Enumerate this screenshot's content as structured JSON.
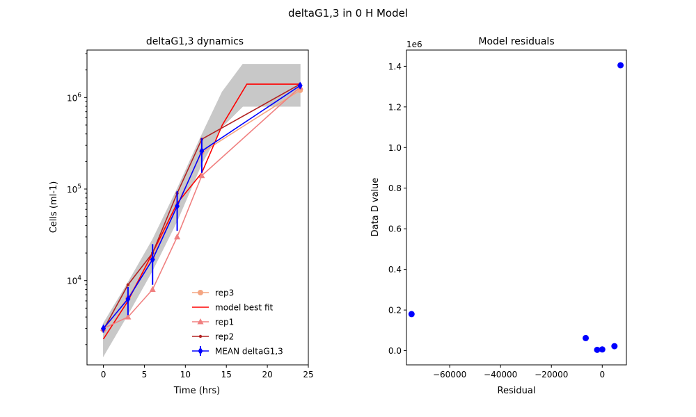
{
  "figure": {
    "suptitle": "deltaG1,3 in 0 H Model"
  },
  "chart_data": [
    {
      "type": "line",
      "title": "deltaG1,3 dynamics",
      "xlabel": "Time (hrs)",
      "ylabel": "Cells (ml-1)",
      "yscale": "log",
      "xlim": [
        -2,
        25
      ],
      "ylim": [
        1200,
        3300000
      ],
      "xticks": [
        0,
        5,
        10,
        15,
        20,
        25
      ],
      "xtick_labels": [
        "0",
        "5",
        "10",
        "15",
        "20",
        "25"
      ],
      "yticks": [
        10000,
        100000,
        1000000
      ],
      "ytick_labels": [
        "10^4",
        "10^5",
        "10^6"
      ],
      "grid": false,
      "legend_position": "lower right",
      "envelope": {
        "color": "#c8c8c8",
        "x": [
          0,
          3,
          6,
          9,
          12,
          14.5,
          17,
          24
        ],
        "y_upper": [
          3400,
          9500,
          28000,
          100000,
          390000,
          1150000,
          2300000,
          2300000
        ],
        "y_lower": [
          1500,
          4300,
          13000,
          45000,
          190000,
          480000,
          800000,
          800000
        ]
      },
      "series": [
        {
          "name": "rep3",
          "color": "#f4a582",
          "marker": "circle",
          "x": [
            0,
            3,
            6,
            9,
            12,
            24
          ],
          "y": [
            2900,
            6500,
            18000,
            68000,
            250000,
            1200000
          ]
        },
        {
          "name": " model best fit",
          "color": "#ff0000",
          "marker": "none",
          "x": [
            0,
            3,
            6,
            9,
            12,
            14.5,
            17.5,
            24
          ],
          "y": [
            2300,
            6000,
            20000,
            70000,
            150000,
            500000,
            1400000,
            1400000
          ]
        },
        {
          "name": "rep1",
          "color": "#f08080",
          "marker": "triangle",
          "x": [
            0,
            3,
            6,
            9,
            12,
            24
          ],
          "y": [
            3000,
            4000,
            8000,
            30000,
            140000,
            1300000
          ]
        },
        {
          "name": "rep2",
          "color": "#b22222",
          "marker": "dot",
          "x": [
            0,
            3,
            6,
            9,
            12,
            24
          ],
          "y": [
            2900,
            9000,
            20000,
            90000,
            350000,
            1400000
          ]
        },
        {
          "name": "MEAN deltaG1,3",
          "color": "#0000ff",
          "marker": "diamond",
          "x": [
            0,
            3,
            6,
            9,
            12,
            24
          ],
          "y": [
            3000,
            6300,
            17000,
            65000,
            260000,
            1350000
          ],
          "err_low": [
            2700,
            4200,
            9000,
            35000,
            150000,
            1250000
          ],
          "err_high": [
            3300,
            8500,
            25000,
            95000,
            360000,
            1450000
          ]
        }
      ]
    },
    {
      "type": "scatter",
      "title": "Model residuals",
      "xlabel": "Residual",
      "ylabel": "Data D value",
      "offset_label": "1e6",
      "xlim": [
        -77000,
        9500
      ],
      "ylim": [
        -0.07,
        1.48
      ],
      "xticks": [
        -60000,
        -40000,
        -20000,
        0
      ],
      "xtick_labels": [
        "−60000",
        "−40000",
        "−20000",
        "0"
      ],
      "yticks": [
        0,
        0.2,
        0.4,
        0.6,
        0.8,
        1.0,
        1.2,
        1.4
      ],
      "ytick_labels": [
        "0.0",
        "0.2",
        "0.4",
        "0.6",
        "0.8",
        "1.0",
        "1.2",
        "1.4"
      ],
      "grid": false,
      "color": "#0000ff",
      "points": [
        {
          "x": -75000,
          "y": 0.18
        },
        {
          "x": -6500,
          "y": 0.062
        },
        {
          "x": -2000,
          "y": 0.004
        },
        {
          "x": 0,
          "y": 0.006
        },
        {
          "x": 4800,
          "y": 0.022
        },
        {
          "x": 7200,
          "y": 1.405
        }
      ]
    }
  ]
}
